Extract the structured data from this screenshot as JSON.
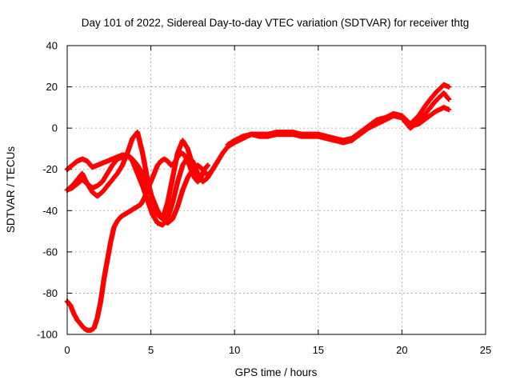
{
  "chart_data": {
    "type": "scatter",
    "title": "Day 101 of 2022, Sidereal Day-to-day VTEC variation (SDTVAR) for receiver thtg",
    "xlabel": "GPS time / hours",
    "ylabel": "SDTVAR / TECUs",
    "xlim": [
      0,
      25
    ],
    "ylim": [
      -100,
      40
    ],
    "x_ticks": [
      "0",
      "5",
      "10",
      "15",
      "20",
      "25"
    ],
    "y_ticks": [
      "40",
      "20",
      "0",
      "-20",
      "-40",
      "-60",
      "-80",
      "-100"
    ],
    "grid": true,
    "marker": "plus",
    "color": "#ff0000",
    "series": [
      {
        "x": [
          0.0,
          0.3,
          0.6,
          0.9,
          1.2,
          1.5,
          1.8,
          2.1,
          2.4,
          2.7,
          3.0,
          3.3,
          3.6,
          3.9,
          4.2,
          4.5,
          4.8,
          5.1,
          5.4,
          5.7,
          6.0,
          6.3,
          6.6,
          6.9,
          7.2,
          7.5,
          7.8,
          8.1,
          8.4,
          8.7,
          9.0,
          9.3,
          9.6
        ],
        "y": [
          -20,
          -18,
          -16,
          -15,
          -16,
          -19,
          -18,
          -17,
          -16,
          -15,
          -14,
          -13,
          -13,
          -15,
          -18,
          -22,
          -28,
          -34,
          -40,
          -44,
          -46,
          -44,
          -38,
          -30,
          -24,
          -20,
          -18,
          -20,
          -23,
          -20,
          -16,
          -12,
          -9
        ]
      },
      {
        "x": [
          0.0,
          0.3,
          0.6,
          0.9,
          1.2,
          1.5,
          1.8,
          2.1,
          2.4,
          2.7,
          3.0,
          3.3,
          3.6,
          3.9,
          4.2,
          4.5,
          4.8,
          5.1,
          5.4,
          5.7,
          6.0,
          6.3,
          6.6,
          6.9,
          7.2,
          7.5,
          7.8,
          8.1,
          8.4,
          8.7,
          9.0
        ],
        "y": [
          -30,
          -29,
          -27,
          -25,
          -27,
          -29,
          -28,
          -26,
          -22,
          -18,
          -15,
          -14,
          -13,
          -16,
          -22,
          -28,
          -35,
          -42,
          -46,
          -47,
          -44,
          -36,
          -26,
          -18,
          -14,
          -16,
          -22,
          -26,
          -24,
          -20,
          -16
        ]
      },
      {
        "x": [
          0.0,
          0.3,
          0.6,
          0.9,
          1.2,
          1.5,
          1.8,
          2.1,
          2.4,
          2.7,
          3.0,
          3.3,
          3.6,
          3.9,
          4.2,
          4.5,
          4.8,
          5.1,
          5.4,
          5.7,
          6.0,
          6.3,
          6.6,
          6.9,
          7.2,
          7.5,
          7.8,
          8.1
        ],
        "y": [
          -30,
          -28,
          -25,
          -22,
          -27,
          -31,
          -33,
          -31,
          -28,
          -25,
          -22,
          -18,
          -12,
          -5,
          -2,
          -12,
          -25,
          -35,
          -42,
          -44,
          -36,
          -24,
          -12,
          -6,
          -10,
          -18,
          -24,
          -22
        ]
      },
      {
        "x": [
          0.0,
          0.2,
          0.4,
          0.6,
          0.8,
          1.0,
          1.2,
          1.4,
          1.6,
          1.8,
          2.0,
          2.2,
          2.4,
          2.6,
          2.8,
          3.0,
          3.2,
          3.4,
          3.6,
          3.8,
          4.0,
          4.2,
          4.4,
          4.6,
          4.8,
          5.0,
          5.2,
          5.4,
          5.6,
          5.8,
          6.0,
          6.2,
          6.4,
          6.6,
          6.8,
          7.0,
          7.2,
          7.4,
          7.6,
          7.8,
          8.0,
          8.2,
          8.4
        ],
        "y": [
          -84,
          -86,
          -90,
          -93,
          -95,
          -97,
          -98,
          -98,
          -97,
          -92,
          -84,
          -73,
          -64,
          -55,
          -48,
          -45,
          -43,
          -42,
          -41,
          -40,
          -39,
          -38,
          -37,
          -34,
          -30,
          -26,
          -22,
          -18,
          -16,
          -15,
          -16,
          -18,
          -17,
          -14,
          -12,
          -13,
          -16,
          -20,
          -24,
          -26,
          -24,
          -20,
          -18
        ]
      },
      {
        "x": [
          9.6,
          10.0,
          10.5,
          11.0,
          11.5,
          12.0,
          12.5,
          13.0,
          13.5,
          14.0,
          14.5,
          15.0,
          15.5,
          16.0,
          16.5,
          17.0,
          17.5,
          18.0,
          18.5,
          19.0,
          19.5,
          20.0,
          20.5,
          21.0,
          21.5,
          22.0,
          22.5,
          22.8
        ],
        "y": [
          -8,
          -6,
          -4,
          -3,
          -4,
          -4,
          -3,
          -3,
          -3,
          -4,
          -4,
          -4,
          -5,
          -6,
          -7,
          -6,
          -3,
          0,
          2,
          4,
          6,
          5,
          0,
          3,
          8,
          13,
          17,
          14
        ]
      },
      {
        "x": [
          9.6,
          10.0,
          10.5,
          11.0,
          11.5,
          12.0,
          12.5,
          13.0,
          13.5,
          14.0,
          14.5,
          15.0,
          15.5,
          16.0,
          16.5,
          17.0,
          17.5,
          18.0,
          18.5,
          19.0,
          19.5,
          20.0,
          20.5,
          21.0,
          21.5,
          22.0,
          22.5,
          22.8
        ],
        "y": [
          -9,
          -7,
          -5,
          -3,
          -3,
          -3,
          -2,
          -2,
          -2,
          -3,
          -3,
          -3,
          -4,
          -5,
          -6,
          -5,
          -2,
          1,
          4,
          5,
          7,
          6,
          2,
          6,
          12,
          17,
          21,
          20
        ]
      },
      {
        "x": [
          20.5,
          21.0,
          21.5,
          22.0,
          22.5,
          22.8
        ],
        "y": [
          1,
          2,
          5,
          8,
          10,
          9
        ]
      }
    ]
  }
}
